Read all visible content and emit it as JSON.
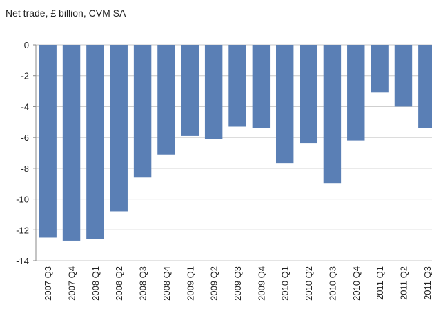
{
  "chart_data": {
    "type": "bar",
    "title": "Net trade, £ billion, CVM SA",
    "categories": [
      "2007 Q3",
      "2007 Q4",
      "2008 Q1",
      "2008 Q2",
      "2008 Q3",
      "2008 Q4",
      "2009 Q1",
      "2009 Q2",
      "2009 Q3",
      "2009 Q4",
      "2010 Q1",
      "2010 Q2",
      "2010 Q3",
      "2010 Q4",
      "2011 Q1",
      "2011 Q2",
      "2011 Q3"
    ],
    "values": [
      -12.5,
      -12.7,
      -12.6,
      -10.8,
      -8.6,
      -7.1,
      -5.9,
      -6.1,
      -5.3,
      -5.4,
      -7.7,
      -6.4,
      -9.0,
      -6.2,
      -3.1,
      -4.0,
      -5.4
    ],
    "color": "#5a7fb5",
    "ylim": [
      -14,
      0
    ],
    "yticks": [
      0,
      -2,
      -4,
      -6,
      -8,
      -10,
      -12,
      -14
    ],
    "grid": true
  }
}
